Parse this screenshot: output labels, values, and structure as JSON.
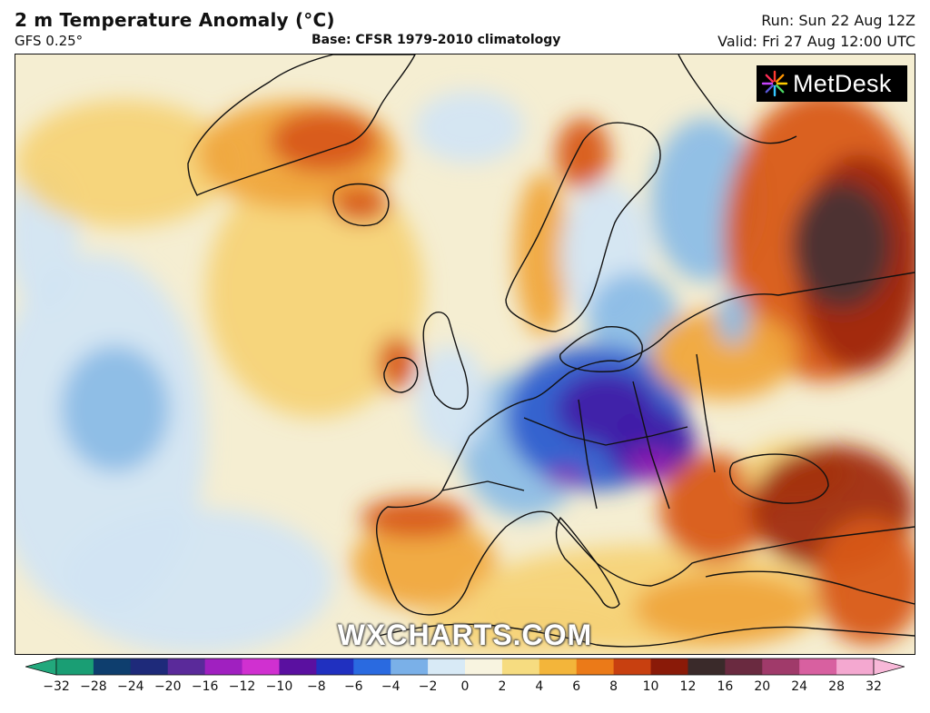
{
  "header": {
    "title": "2 m Temperature Anomaly (°C)",
    "model": "GFS 0.25°",
    "base": "Base: CFSR 1979-2010 climatology",
    "run": "Run: Sun 22 Aug 12Z",
    "valid": "Valid: Fri 27 Aug 12:00 UTC"
  },
  "logo": {
    "text": "MetDesk",
    "icon": "metdesk-star-icon"
  },
  "watermark": "WXCHARTS.COM",
  "colorbar": {
    "ticks": [
      "−32",
      "−28",
      "−24",
      "−20",
      "−16",
      "−12",
      "−10",
      "−8",
      "−6",
      "−4",
      "−2",
      "0",
      "2",
      "4",
      "6",
      "8",
      "10",
      "12",
      "16",
      "20",
      "24",
      "28",
      "32"
    ],
    "colors": [
      "#1a9e74",
      "#0e3e6e",
      "#1e2a7a",
      "#5a2a9a",
      "#a020c0",
      "#d030d0",
      "#5a10a0",
      "#2030c0",
      "#2a6ae0",
      "#7ab0e8",
      "#d8eaf6",
      "#f8f4e0",
      "#f6dc80",
      "#f3b53a",
      "#eb7a18",
      "#c84010",
      "#8a1a08",
      "#3a2a2a",
      "#6a2a40",
      "#a03a6a",
      "#d860a0",
      "#f4a8d0"
    ],
    "left_cap_color": "#22a87c",
    "right_cap_color": "#f8b8d8"
  },
  "colors": {
    "ocean_neutral": "#f5eed2",
    "warm_light": "#f5d377",
    "warm": "#f0a63c",
    "hot": "#d85818",
    "very_hot": "#a02a0a",
    "extreme": "#4a3434",
    "cool_light": "#d3e5f3",
    "cool": "#8cbde6",
    "cold": "#2f5fcf",
    "very_cold": "#4020a8",
    "coldest": "#9020b0",
    "coast": "#111111"
  }
}
